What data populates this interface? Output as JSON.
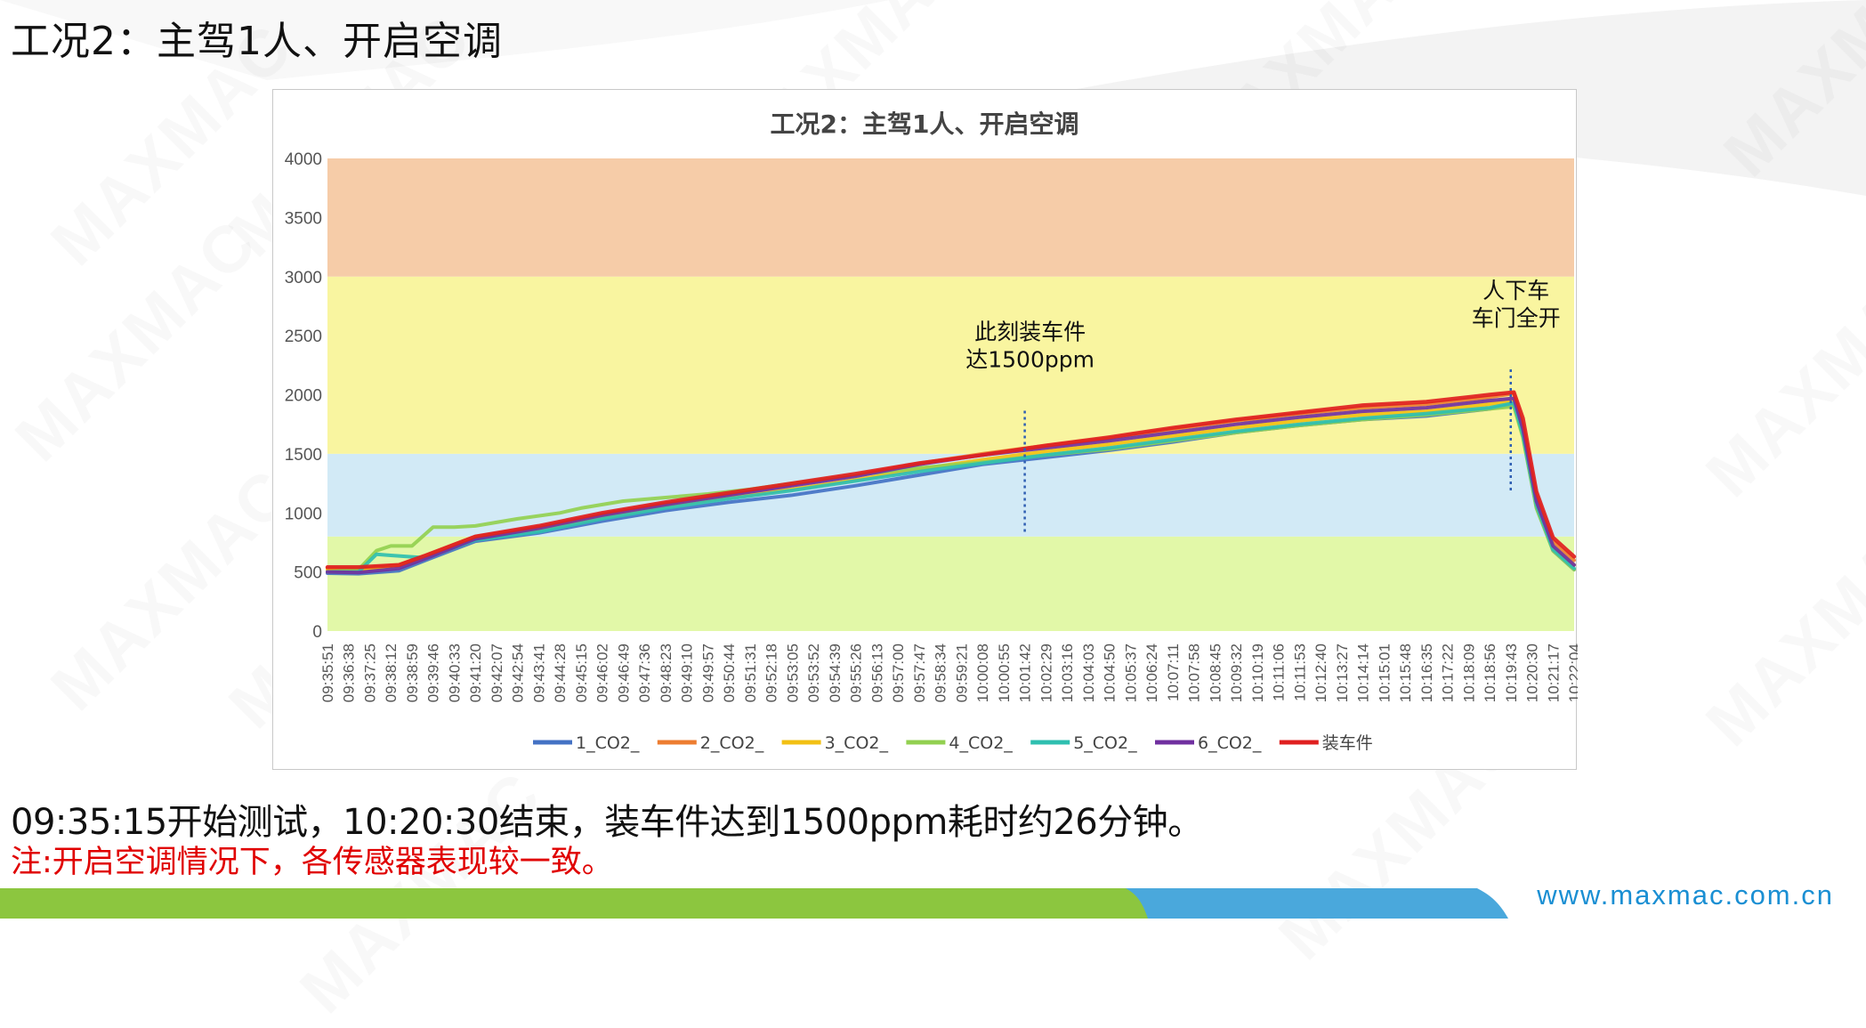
{
  "slide": {
    "title": "工况2：主驾1人、开启空调",
    "caption": "09:35:15开始测试，10:20:30结束，装车件达到1500ppm耗时约26分钟。",
    "note": "注:开启空调情况下，各传感器表现较一致。",
    "footer_url": "www.maxmac.com.cn",
    "watermark_text": "MAXMAC"
  },
  "colors": {
    "band_green": "#e2f8a8",
    "band_blue": "#d2eaf6",
    "band_yellow": "#f9f5a0",
    "band_orange": "#f6cca8",
    "footer_green": "#8cc63f",
    "footer_blue": "#4aa8dc"
  },
  "chart_data": {
    "type": "line",
    "title": "工况2：主驾1人、开启空调",
    "xlabel": "",
    "ylabel": "",
    "ylim": [
      0,
      4000
    ],
    "yticks": [
      0,
      500,
      1000,
      1500,
      2000,
      2500,
      3000,
      3500,
      4000
    ],
    "bands": [
      {
        "from": 0,
        "to": 800,
        "color": "#e2f8a8"
      },
      {
        "from": 800,
        "to": 1500,
        "color": "#d2eaf6"
      },
      {
        "from": 1500,
        "to": 3000,
        "color": "#f9f5a0"
      },
      {
        "from": 3000,
        "to": 4000,
        "color": "#f6cca8"
      }
    ],
    "x_start": "09:35:51",
    "x_end": "10:22:04",
    "categories": [
      "09:35:51",
      "09:36:38",
      "09:37:25",
      "09:38:12",
      "09:38:59",
      "09:39:46",
      "09:40:33",
      "09:41:20",
      "09:42:07",
      "09:42:54",
      "09:43:41",
      "09:44:28",
      "09:45:15",
      "09:46:02",
      "09:46:49",
      "09:47:36",
      "09:48:23",
      "09:49:10",
      "09:49:57",
      "09:50:44",
      "09:51:31",
      "09:52:18",
      "09:53:05",
      "09:53:52",
      "09:54:39",
      "09:55:26",
      "09:56:13",
      "09:57:00",
      "09:57:47",
      "09:58:34",
      "09:59:21",
      "10:00:08",
      "10:00:55",
      "10:01:42",
      "10:02:29",
      "10:03:16",
      "10:04:03",
      "10:04:50",
      "10:05:37",
      "10:06:24",
      "10:07:11",
      "10:07:58",
      "10:08:45",
      "10:09:32",
      "10:10:19",
      "10:11:06",
      "10:11:53",
      "10:12:40",
      "10:13:27",
      "10:14:14",
      "10:15:01",
      "10:15:48",
      "10:16:35",
      "10:17:22",
      "10:18:09",
      "10:18:56",
      "10:19:43",
      "10:20:30",
      "10:21:17",
      "10:22:04"
    ],
    "series": [
      {
        "name": "1_CO2_",
        "color": "#4472c4",
        "points": [
          [
            "09:35:51",
            490
          ],
          [
            "09:37:00",
            485
          ],
          [
            "09:38:30",
            510
          ],
          [
            "09:39:30",
            600
          ],
          [
            "09:41:20",
            760
          ],
          [
            "09:43:41",
            830
          ],
          [
            "09:46:02",
            930
          ],
          [
            "09:48:23",
            1020
          ],
          [
            "09:50:44",
            1090
          ],
          [
            "09:53:05",
            1150
          ],
          [
            "09:55:26",
            1230
          ],
          [
            "09:57:47",
            1320
          ],
          [
            "10:00:08",
            1410
          ],
          [
            "10:02:29",
            1470
          ],
          [
            "10:04:50",
            1530
          ],
          [
            "10:07:11",
            1600
          ],
          [
            "10:09:32",
            1680
          ],
          [
            "10:11:53",
            1740
          ],
          [
            "10:14:14",
            1790
          ],
          [
            "10:16:35",
            1820
          ],
          [
            "10:18:56",
            1880
          ],
          [
            "10:19:50",
            1920
          ],
          [
            "10:20:10",
            1650
          ],
          [
            "10:20:40",
            1050
          ],
          [
            "10:21:17",
            680
          ],
          [
            "10:22:04",
            520
          ]
        ]
      },
      {
        "name": "2_CO2_",
        "color": "#ed7d31",
        "points": [
          [
            "09:35:51",
            530
          ],
          [
            "09:37:00",
            525
          ],
          [
            "09:38:30",
            560
          ],
          [
            "09:39:30",
            640
          ],
          [
            "09:41:20",
            800
          ],
          [
            "09:43:41",
            880
          ],
          [
            "09:46:02",
            990
          ],
          [
            "09:48:23",
            1080
          ],
          [
            "09:50:44",
            1160
          ],
          [
            "09:53:05",
            1240
          ],
          [
            "09:55:26",
            1320
          ],
          [
            "09:57:47",
            1420
          ],
          [
            "10:00:08",
            1500
          ],
          [
            "10:02:29",
            1570
          ],
          [
            "10:04:50",
            1630
          ],
          [
            "10:07:11",
            1710
          ],
          [
            "10:09:32",
            1780
          ],
          [
            "10:11:53",
            1840
          ],
          [
            "10:14:14",
            1890
          ],
          [
            "10:16:35",
            1920
          ],
          [
            "10:18:56",
            1980
          ],
          [
            "10:19:50",
            2010
          ],
          [
            "10:20:10",
            1740
          ],
          [
            "10:20:40",
            1150
          ],
          [
            "10:21:17",
            760
          ],
          [
            "10:22:04",
            600
          ]
        ]
      },
      {
        "name": "3_CO2_",
        "color": "#f2c014",
        "points": [
          [
            "09:35:51",
            520
          ],
          [
            "09:37:00",
            515
          ],
          [
            "09:38:30",
            550
          ],
          [
            "09:39:30",
            625
          ],
          [
            "09:41:20",
            790
          ],
          [
            "09:43:41",
            860
          ],
          [
            "09:46:02",
            960
          ],
          [
            "09:48:23",
            1055
          ],
          [
            "09:50:44",
            1130
          ],
          [
            "09:53:05",
            1200
          ],
          [
            "09:55:26",
            1280
          ],
          [
            "09:57:47",
            1370
          ],
          [
            "10:00:08",
            1450
          ],
          [
            "10:02:29",
            1520
          ],
          [
            "10:04:50",
            1580
          ],
          [
            "10:07:11",
            1650
          ],
          [
            "10:09:32",
            1720
          ],
          [
            "10:11:53",
            1780
          ],
          [
            "10:14:14",
            1830
          ],
          [
            "10:16:35",
            1860
          ],
          [
            "10:18:56",
            1920
          ],
          [
            "10:19:50",
            1950
          ],
          [
            "10:20:10",
            1700
          ],
          [
            "10:20:40",
            1100
          ],
          [
            "10:21:17",
            710
          ],
          [
            "10:22:04",
            560
          ]
        ]
      },
      {
        "name": "4_CO2_",
        "color": "#92d050",
        "points": [
          [
            "09:35:51",
            500
          ],
          [
            "09:37:00",
            520
          ],
          [
            "09:37:40",
            680
          ],
          [
            "09:38:12",
            720
          ],
          [
            "09:38:59",
            720
          ],
          [
            "09:39:46",
            880
          ],
          [
            "09:40:33",
            880
          ],
          [
            "09:41:20",
            890
          ],
          [
            "09:42:54",
            950
          ],
          [
            "09:44:28",
            1000
          ],
          [
            "09:45:15",
            1040
          ],
          [
            "09:46:49",
            1100
          ],
          [
            "09:48:23",
            1130
          ],
          [
            "09:49:57",
            1160
          ],
          [
            "09:51:31",
            1200
          ],
          [
            "09:53:05",
            1250
          ],
          [
            "09:55:26",
            1320
          ],
          [
            "09:57:47",
            1380
          ],
          [
            "10:00:08",
            1430
          ],
          [
            "10:02:29",
            1490
          ],
          [
            "10:04:50",
            1540
          ],
          [
            "10:07:11",
            1610
          ],
          [
            "10:09:32",
            1680
          ],
          [
            "10:11:53",
            1740
          ],
          [
            "10:14:14",
            1790
          ],
          [
            "10:16:35",
            1830
          ],
          [
            "10:18:56",
            1880
          ],
          [
            "10:19:50",
            1900
          ],
          [
            "10:20:10",
            1640
          ],
          [
            "10:20:40",
            1040
          ],
          [
            "10:21:17",
            680
          ],
          [
            "10:22:04",
            520
          ]
        ]
      },
      {
        "name": "5_CO2_",
        "color": "#2fbfb0",
        "points": [
          [
            "09:35:51",
            500
          ],
          [
            "09:37:00",
            500
          ],
          [
            "09:37:40",
            650
          ],
          [
            "09:38:12",
            640
          ],
          [
            "09:39:30",
            620
          ],
          [
            "09:41:20",
            770
          ],
          [
            "09:43:41",
            840
          ],
          [
            "09:46:02",
            950
          ],
          [
            "09:48:23",
            1040
          ],
          [
            "09:50:44",
            1120
          ],
          [
            "09:53:05",
            1190
          ],
          [
            "09:55:26",
            1270
          ],
          [
            "09:57:47",
            1350
          ],
          [
            "10:00:08",
            1420
          ],
          [
            "10:02:29",
            1490
          ],
          [
            "10:04:50",
            1550
          ],
          [
            "10:07:11",
            1620
          ],
          [
            "10:09:32",
            1690
          ],
          [
            "10:11:53",
            1750
          ],
          [
            "10:14:14",
            1800
          ],
          [
            "10:16:35",
            1840
          ],
          [
            "10:18:56",
            1890
          ],
          [
            "10:19:50",
            1930
          ],
          [
            "10:20:10",
            1660
          ],
          [
            "10:20:40",
            1070
          ],
          [
            "10:21:17",
            690
          ],
          [
            "10:22:04",
            530
          ]
        ]
      },
      {
        "name": "6_CO2_",
        "color": "#7030a0",
        "points": [
          [
            "09:35:51",
            500
          ],
          [
            "09:37:00",
            495
          ],
          [
            "09:38:30",
            530
          ],
          [
            "09:39:30",
            615
          ],
          [
            "09:41:20",
            780
          ],
          [
            "09:43:41",
            870
          ],
          [
            "09:46:02",
            980
          ],
          [
            "09:48:23",
            1070
          ],
          [
            "09:50:44",
            1150
          ],
          [
            "09:53:05",
            1230
          ],
          [
            "09:55:26",
            1310
          ],
          [
            "09:57:47",
            1410
          ],
          [
            "10:00:08",
            1490
          ],
          [
            "10:02:29",
            1550
          ],
          [
            "10:04:50",
            1610
          ],
          [
            "10:07:11",
            1680
          ],
          [
            "10:09:32",
            1750
          ],
          [
            "10:11:53",
            1810
          ],
          [
            "10:14:14",
            1860
          ],
          [
            "10:16:35",
            1890
          ],
          [
            "10:18:56",
            1950
          ],
          [
            "10:19:50",
            1970
          ],
          [
            "10:20:10",
            1710
          ],
          [
            "10:20:40",
            1100
          ],
          [
            "10:21:17",
            720
          ],
          [
            "10:22:04",
            560
          ]
        ]
      },
      {
        "name": "装车件",
        "color": "#e02020",
        "points": [
          [
            "09:35:51",
            540
          ],
          [
            "09:37:00",
            540
          ],
          [
            "09:38:30",
            560
          ],
          [
            "09:39:30",
            640
          ],
          [
            "09:41:20",
            800
          ],
          [
            "09:43:41",
            890
          ],
          [
            "09:46:02",
            1000
          ],
          [
            "09:48:23",
            1090
          ],
          [
            "09:50:44",
            1170
          ],
          [
            "09:53:05",
            1250
          ],
          [
            "09:55:26",
            1330
          ],
          [
            "09:57:47",
            1420
          ],
          [
            "10:00:08",
            1490
          ],
          [
            "10:02:29",
            1570
          ],
          [
            "10:04:50",
            1640
          ],
          [
            "10:07:11",
            1720
          ],
          [
            "10:09:32",
            1790
          ],
          [
            "10:11:53",
            1850
          ],
          [
            "10:14:14",
            1910
          ],
          [
            "10:16:35",
            1940
          ],
          [
            "10:18:56",
            2000
          ],
          [
            "10:19:50",
            2020
          ],
          [
            "10:20:10",
            1800
          ],
          [
            "10:20:40",
            1180
          ],
          [
            "10:21:17",
            790
          ],
          [
            "10:22:04",
            630
          ]
        ]
      }
    ],
    "annotations": [
      {
        "lines": [
          "此刻装车件",
          "达1500ppm"
        ],
        "x": "10:01:42",
        "y_from": 830,
        "y_to": 2000
      },
      {
        "lines": [
          "人下车",
          "车门全开"
        ],
        "x": "10:19:43",
        "y_from": 1180,
        "y_to": 2350
      }
    ],
    "legend_position": "bottom",
    "grid": false
  }
}
